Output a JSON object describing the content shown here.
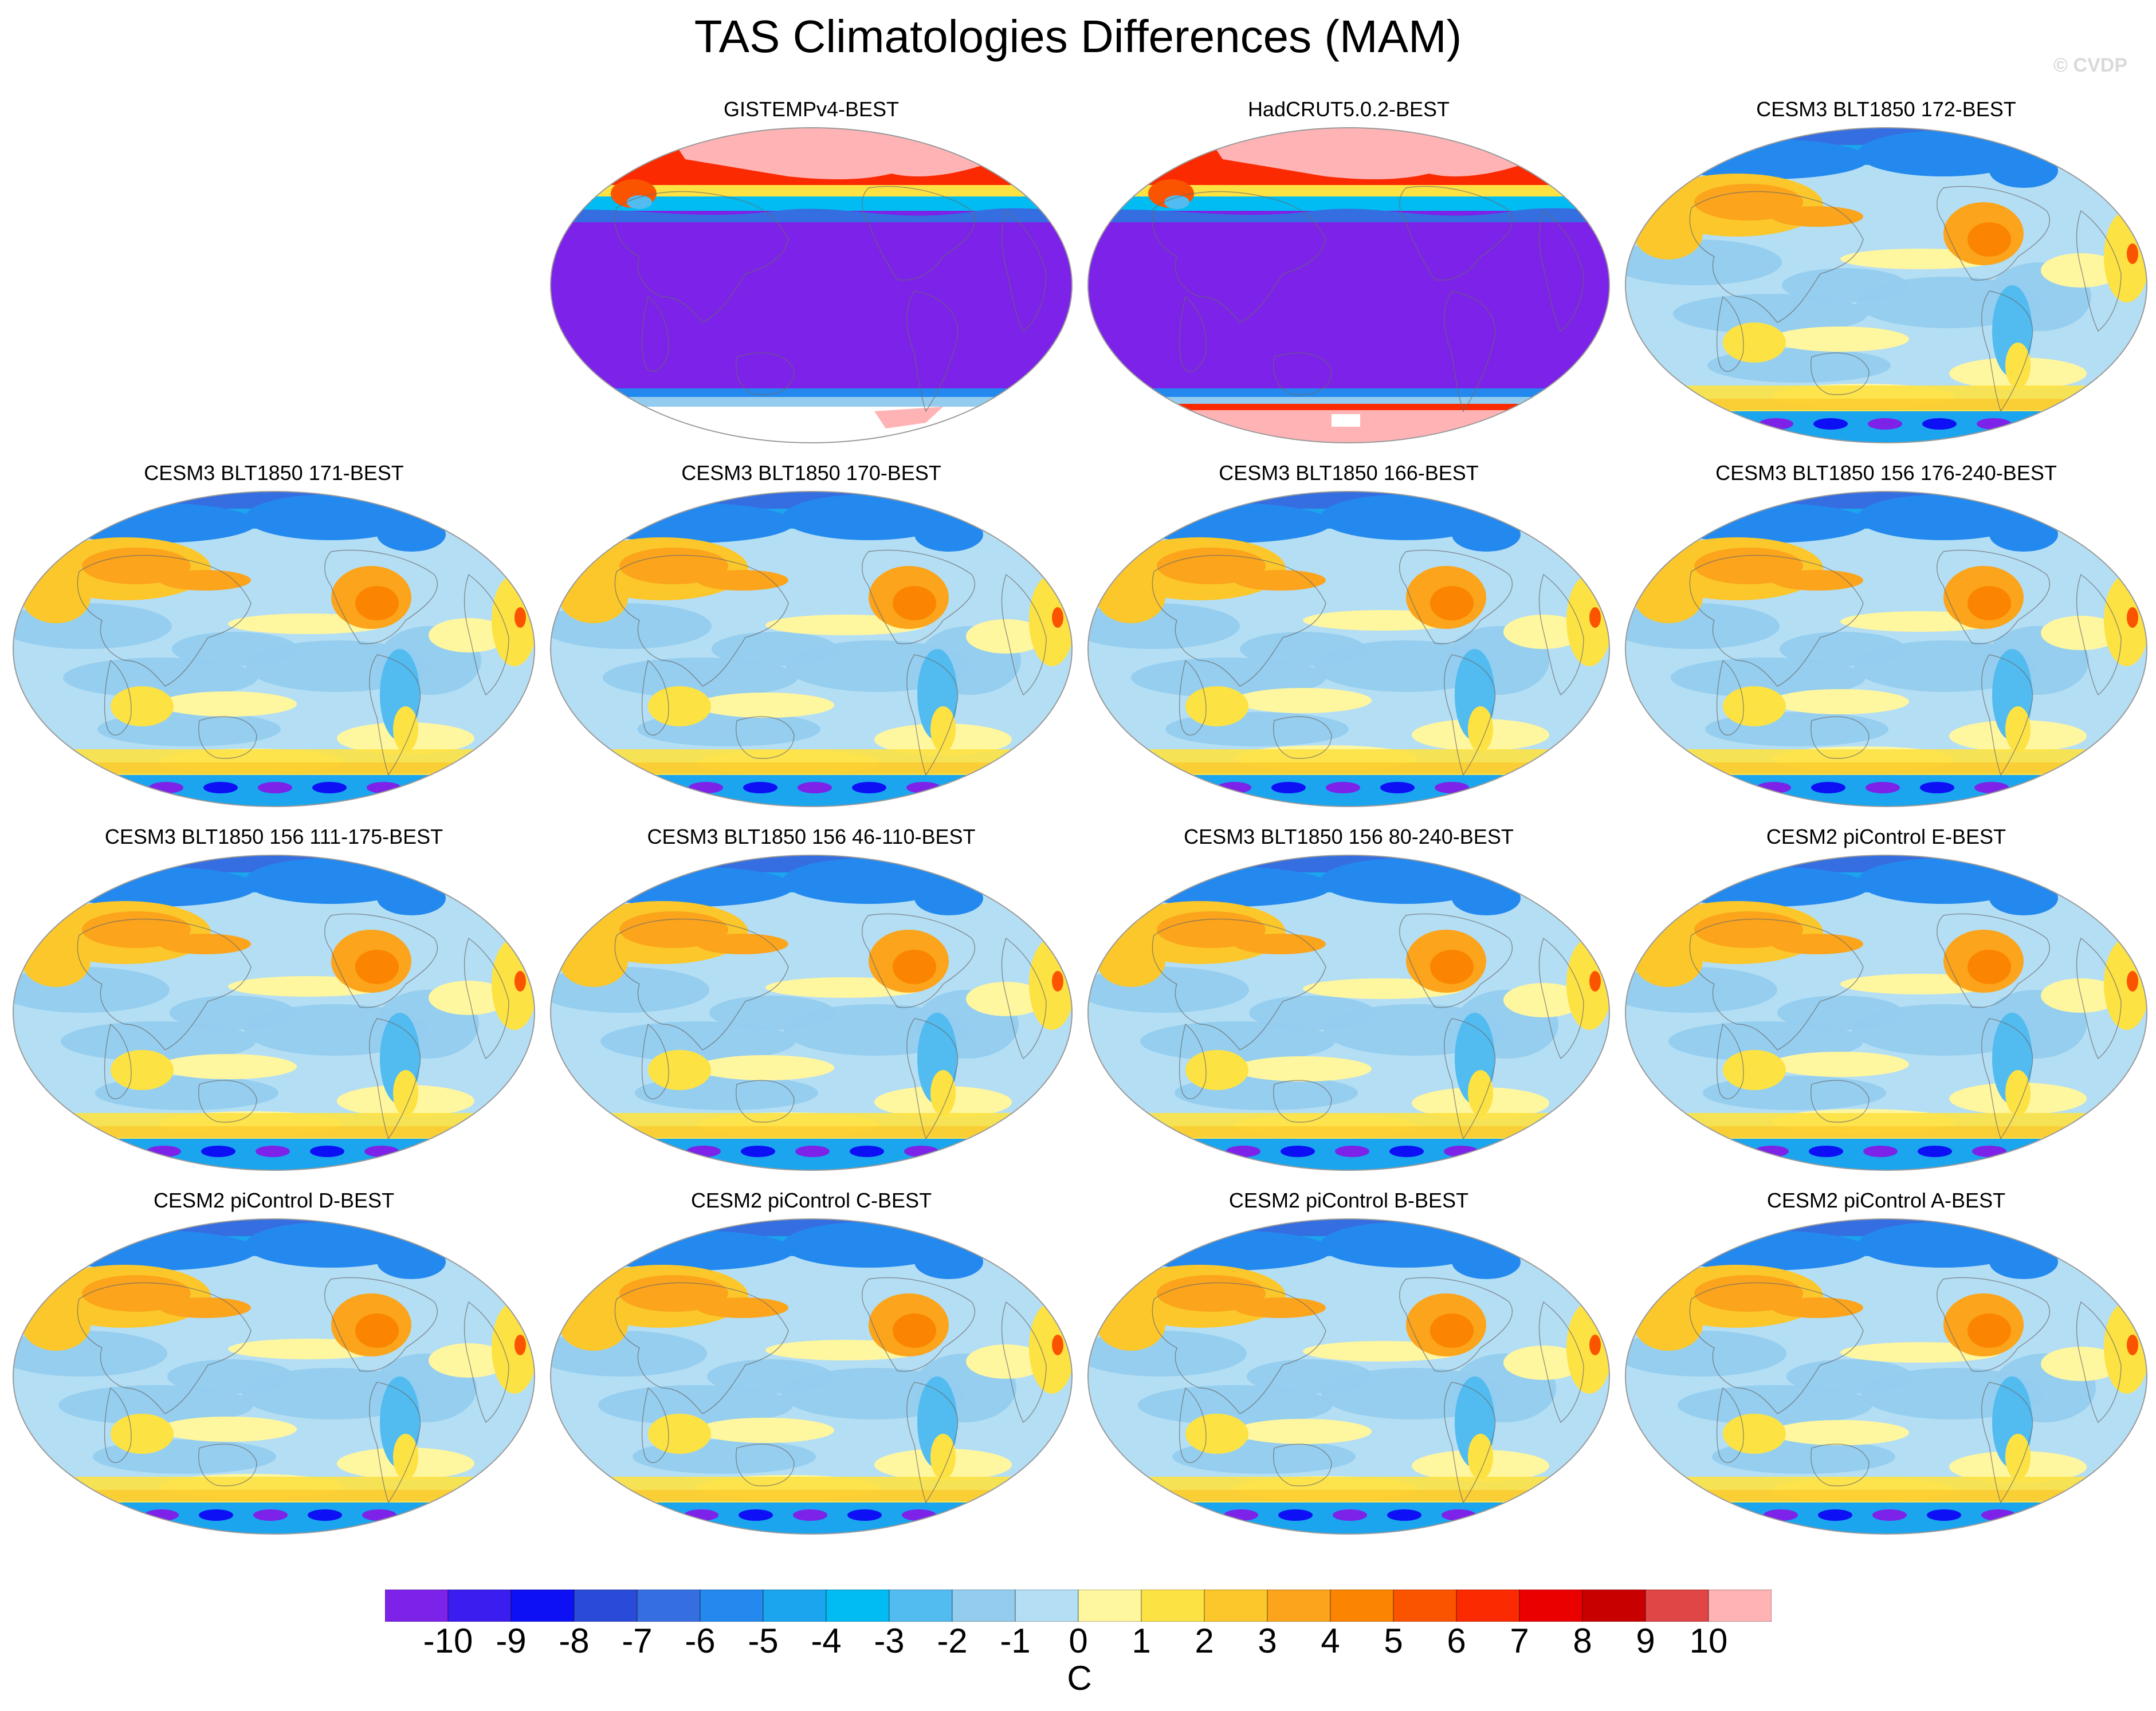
{
  "title": "TAS Climatologies Differences (MAM)",
  "credit": "© CVDP",
  "panels": [
    {
      "label": "GISTEMPv4-BEST",
      "style": "obs_gis"
    },
    {
      "label": "HadCRUT5.0.2-BEST",
      "style": "obs_had"
    },
    {
      "label": "CESM3 BLT1850 172-BEST",
      "style": "model"
    },
    {
      "label": "CESM3 BLT1850 171-BEST",
      "style": "model"
    },
    {
      "label": "CESM3 BLT1850 170-BEST",
      "style": "model"
    },
    {
      "label": "CESM3 BLT1850 166-BEST",
      "style": "model"
    },
    {
      "label": "CESM3 BLT1850 156 176-240-BEST",
      "style": "model"
    },
    {
      "label": "CESM3 BLT1850 156 111-175-BEST",
      "style": "model"
    },
    {
      "label": "CESM3 BLT1850 156 46-110-BEST",
      "style": "model"
    },
    {
      "label": "CESM3 BLT1850 156 80-240-BEST",
      "style": "model"
    },
    {
      "label": "CESM2 piControl E-BEST",
      "style": "model"
    },
    {
      "label": "CESM2 piControl D-BEST",
      "style": "model"
    },
    {
      "label": "CESM2 piControl C-BEST",
      "style": "model"
    },
    {
      "label": "CESM2 piControl B-BEST",
      "style": "model"
    },
    {
      "label": "CESM2 piControl A-BEST",
      "style": "model"
    }
  ],
  "colorbar": {
    "colors": [
      "#7d22e8",
      "#3b1df0",
      "#0d10f5",
      "#2a4bd8",
      "#356ee0",
      "#2489ee",
      "#1aa5ee",
      "#00bcf2",
      "#52bbf0",
      "#93ccee",
      "#b4def4",
      "#fff6a0",
      "#fde244",
      "#fcc72a",
      "#fba41c",
      "#fb8500",
      "#fb5400",
      "#fb2a00",
      "#eb0000",
      "#c90000",
      "#e04646",
      "#ffb3b5"
    ],
    "labels": [
      "-10",
      "-9",
      "-8",
      "-7",
      "-6",
      "-5",
      "-4",
      "-3",
      "-2",
      "-1",
      "0",
      "1",
      "2",
      "3",
      "4",
      "5",
      "6",
      "7",
      "8",
      "9",
      "10"
    ],
    "units": "C"
  }
}
